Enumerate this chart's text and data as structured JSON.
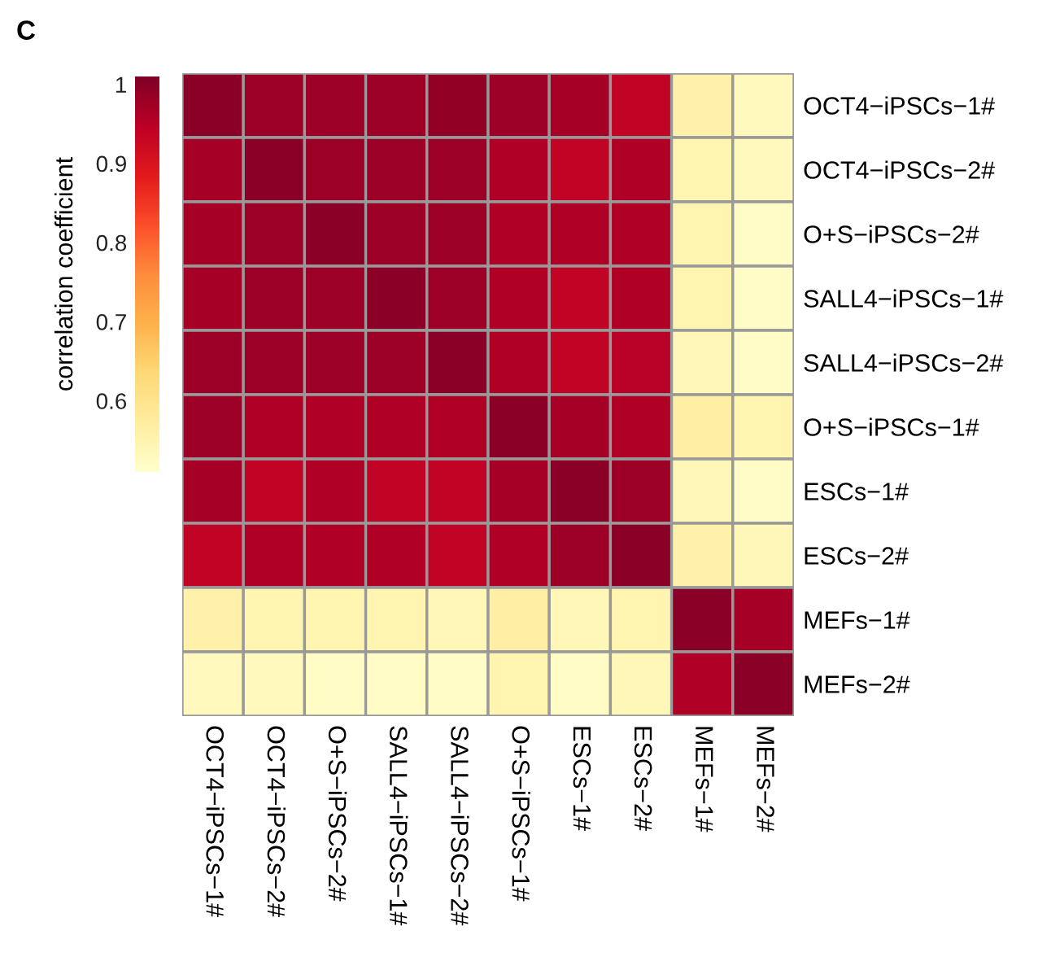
{
  "chart_data": {
    "type": "heatmap",
    "annotations": [
      "C"
    ],
    "clabel": "correlation coefficient",
    "categories": [
      "OCT4−iPSCs−1#",
      "OCT4−iPSCs−2#",
      "O+S−iPSCs−2#",
      "SALL4−iPSCs−1#",
      "SALL4−iPSCs−2#",
      "O+S−iPSCs−1#",
      "ESCs−1#",
      "ESCs−2#",
      "MEFs−1#",
      "MEFs−2#"
    ],
    "y_categories": [
      "OCT4−iPSCs−1#",
      "OCT4−iPSCs−2#",
      "O+S−iPSCs−2#",
      "SALL4−iPSCs−1#",
      "SALL4−iPSCs−2#",
      "O+S−iPSCs−1#",
      "ESCs−1#",
      "ESCs−2#",
      "MEFs−1#",
      "MEFs−2#"
    ],
    "cells": [
      [
        1.0,
        0.98,
        0.98,
        0.98,
        0.99,
        0.98,
        0.97,
        0.94,
        0.56,
        0.53
      ],
      [
        0.97,
        1.0,
        0.98,
        0.98,
        0.98,
        0.96,
        0.94,
        0.96,
        0.55,
        0.53
      ],
      [
        0.97,
        0.98,
        1.0,
        0.98,
        0.98,
        0.96,
        0.96,
        0.96,
        0.55,
        0.52
      ],
      [
        0.97,
        0.98,
        0.98,
        1.0,
        0.98,
        0.96,
        0.94,
        0.96,
        0.55,
        0.52
      ],
      [
        0.98,
        0.98,
        0.98,
        0.98,
        1.0,
        0.96,
        0.94,
        0.95,
        0.54,
        0.52
      ],
      [
        0.98,
        0.96,
        0.96,
        0.96,
        0.96,
        1.0,
        0.97,
        0.96,
        0.57,
        0.55
      ],
      [
        0.97,
        0.94,
        0.96,
        0.94,
        0.94,
        0.97,
        1.0,
        0.98,
        0.54,
        0.52
      ],
      [
        0.94,
        0.96,
        0.96,
        0.96,
        0.94,
        0.96,
        0.98,
        1.0,
        0.56,
        0.54
      ],
      [
        0.56,
        0.55,
        0.55,
        0.55,
        0.54,
        0.57,
        0.54,
        0.55,
        1.0,
        0.97
      ],
      [
        0.53,
        0.53,
        0.52,
        0.52,
        0.52,
        0.55,
        0.52,
        0.54,
        0.96,
        1.0
      ]
    ],
    "clim": [
      0.51,
      1.01
    ],
    "cticks": [
      0.6,
      0.7,
      0.8,
      0.9,
      1
    ]
  }
}
